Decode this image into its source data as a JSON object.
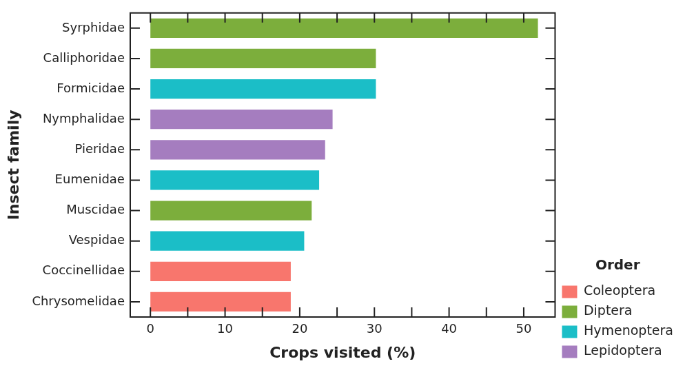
{
  "chart_data": {
    "type": "bar",
    "orientation": "horizontal",
    "xlabel": "Crops visited (%)",
    "ylabel": "Insect family",
    "legend_title": "Order",
    "legend": "right",
    "categories": [
      "Syrphidae",
      "Calliphoridae",
      "Formicidae",
      "Nymphalidae",
      "Pieridae",
      "Eumenidae",
      "Muscidae",
      "Vespidae",
      "Coccinellidae",
      "Chrysomelidae"
    ],
    "series": [
      {
        "name": "Coleoptera",
        "color": "#f8766d",
        "values": [
          null,
          null,
          null,
          null,
          null,
          null,
          null,
          null,
          18.8,
          18.8
        ]
      },
      {
        "name": "Diptera",
        "color": "#7cae3c",
        "values": [
          51.9,
          30.2,
          null,
          null,
          null,
          null,
          21.6,
          null,
          null,
          null
        ]
      },
      {
        "name": "Hymenoptera",
        "color": "#1bbec7",
        "values": [
          null,
          null,
          30.2,
          null,
          null,
          22.6,
          null,
          20.6,
          null,
          null
        ]
      },
      {
        "name": "Lepidoptera",
        "color": "#a57dbf",
        "values": [
          null,
          null,
          null,
          24.4,
          23.4,
          null,
          null,
          null,
          null,
          null
        ]
      }
    ],
    "xlim": [
      -2.7,
      54.2
    ],
    "xticks": [
      0,
      {
        "value": 5,
        "label": null
      },
      10,
      {
        "value": 15,
        "label": null
      },
      20,
      {
        "value": 25,
        "label": null
      },
      30,
      {
        "value": 35,
        "label": null
      },
      40,
      {
        "value": 45,
        "label": null
      },
      50
    ],
    "grid": false
  }
}
